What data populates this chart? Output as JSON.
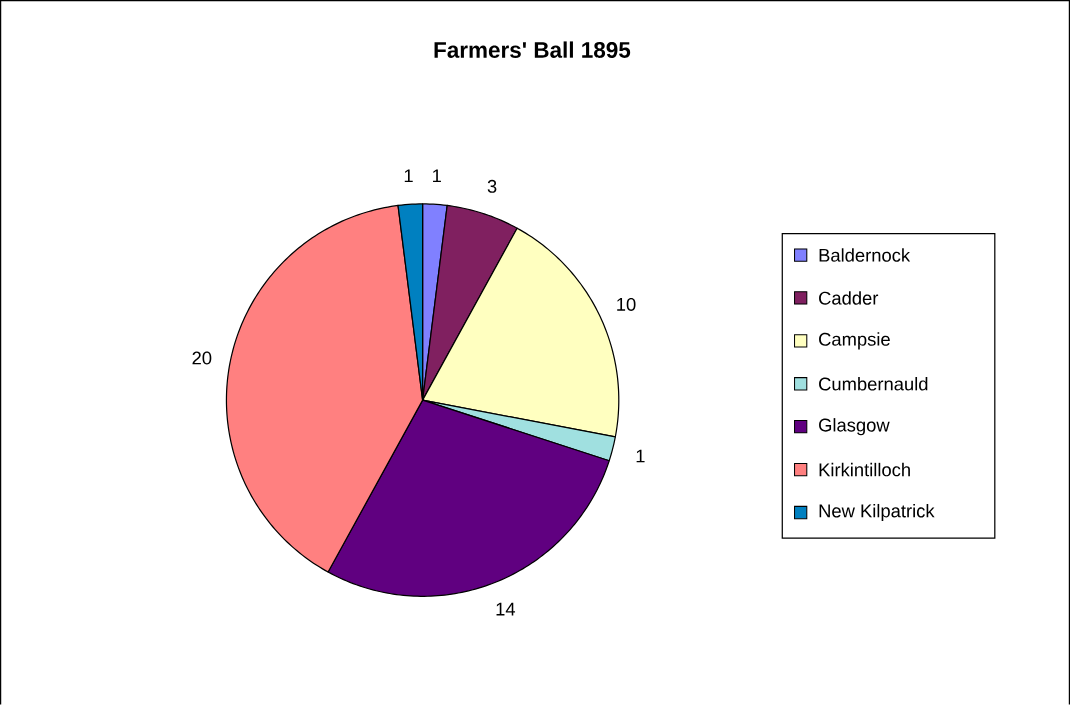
{
  "chart_data": {
    "type": "pie",
    "title": "Farmers' Ball 1895",
    "categories": [
      "Baldernock",
      "Cadder",
      "Campsie",
      "Cumbernauld",
      "Glasgow",
      "Kirkintilloch",
      "New Kilpatrick"
    ],
    "values": [
      1,
      3,
      10,
      1,
      14,
      20,
      1
    ],
    "colors": [
      "#8080ff",
      "#802060",
      "#ffffc0",
      "#a0e0e0",
      "#600080",
      "#ff8080",
      "#0080c0"
    ],
    "data_labels": true,
    "legend": "right"
  }
}
